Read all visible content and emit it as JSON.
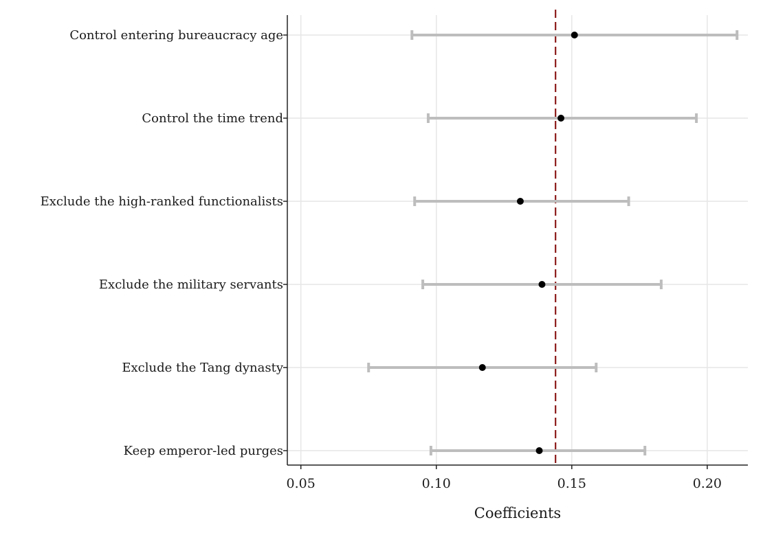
{
  "chart_data": {
    "type": "scatter",
    "subtype": "coefficient-plot-with-confidence-intervals",
    "title": "",
    "xlabel": "Coefficients",
    "ylabel": "",
    "xlim": [
      0.045,
      0.215
    ],
    "xticks": [
      0.05,
      0.1,
      0.15,
      0.2
    ],
    "xtick_labels": [
      "0.05",
      "0.10",
      "0.15",
      "0.20"
    ],
    "reference_line": {
      "x": 0.144,
      "style": "dashed",
      "color": "#8b1a1a"
    },
    "grid": "vertical and horizontal",
    "legend": "none",
    "ci_color": "#bdbdbd",
    "point_color": "#000000",
    "categories": [
      "Control entering bureaucracy age",
      "Control the time trend",
      "Exclude the high-ranked functionalists",
      "Exclude the military servants",
      "Exclude the Tang dynasty",
      "Keep emperor-led purges"
    ],
    "estimates": [
      0.151,
      0.146,
      0.131,
      0.139,
      0.117,
      0.138
    ],
    "ci_lower": [
      0.091,
      0.097,
      0.092,
      0.095,
      0.075,
      0.098
    ],
    "ci_upper": [
      0.211,
      0.196,
      0.171,
      0.183,
      0.159,
      0.177
    ]
  }
}
